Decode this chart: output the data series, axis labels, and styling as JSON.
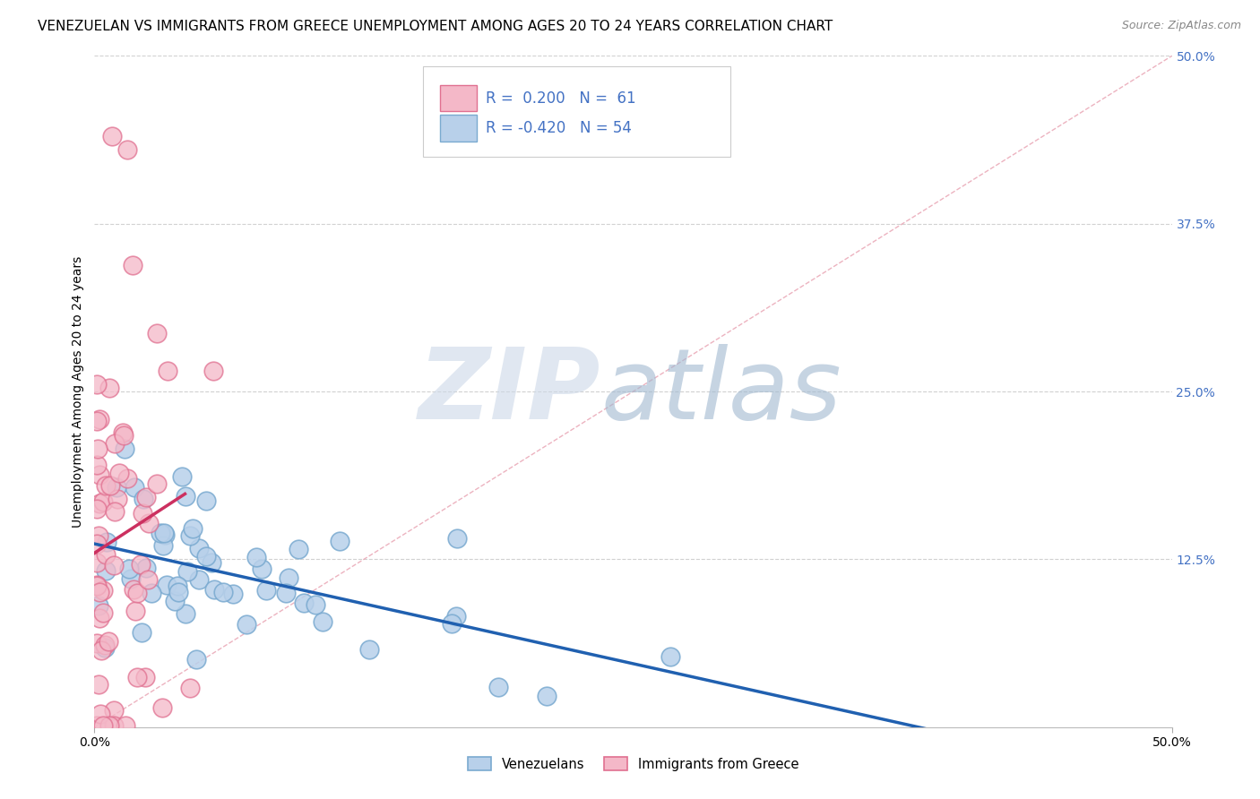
{
  "title": "VENEZUELAN VS IMMIGRANTS FROM GREECE UNEMPLOYMENT AMONG AGES 20 TO 24 YEARS CORRELATION CHART",
  "source": "Source: ZipAtlas.com",
  "ylabel": "Unemployment Among Ages 20 to 24 years",
  "xlim": [
    0.0,
    0.5
  ],
  "ylim": [
    0.0,
    0.5
  ],
  "background_color": "#ffffff",
  "grid_color": "#cccccc",
  "legend_R_blue": "-0.420",
  "legend_N_blue": "54",
  "legend_R_pink": "0.200",
  "legend_N_pink": "61",
  "blue_fill": "#b8d0ea",
  "blue_edge": "#7aaad0",
  "pink_fill": "#f4b8c8",
  "pink_edge": "#e07090",
  "blue_line_color": "#2060b0",
  "pink_line_color": "#cc3060",
  "diagonal_color": "#e8a0b0",
  "tick_color_right": "#4472c4",
  "title_fontsize": 11,
  "axis_label_fontsize": 10,
  "tick_fontsize": 10
}
